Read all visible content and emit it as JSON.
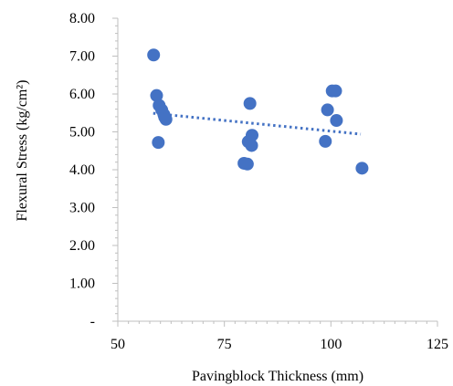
{
  "chart_data": {
    "type": "scatter",
    "title": "",
    "xlabel": "Pavingblock Thickness (mm)",
    "ylabel": "Flexural Stress (kg/cm²)",
    "xlim": [
      50,
      125
    ],
    "ylim": [
      0,
      8
    ],
    "x_ticks": [
      {
        "value": 50,
        "label": "50"
      },
      {
        "value": 75,
        "label": "75"
      },
      {
        "value": 100,
        "label": "100"
      },
      {
        "value": 125,
        "label": "125"
      }
    ],
    "y_ticks": [
      {
        "value": 0,
        "label": "-"
      },
      {
        "value": 1,
        "label": "1.00"
      },
      {
        "value": 2,
        "label": "2.00"
      },
      {
        "value": 3,
        "label": "3.00"
      },
      {
        "value": 4,
        "label": "4.00"
      },
      {
        "value": 5,
        "label": "5.00"
      },
      {
        "value": 6,
        "label": "6.00"
      },
      {
        "value": 7,
        "label": "7.00"
      },
      {
        "value": 8,
        "label": "8.00"
      }
    ],
    "grid": false,
    "legend": "none",
    "marker_color": "#4472C4",
    "trendline": {
      "type": "linear",
      "style": "dotted",
      "color": "#4472C4",
      "x": [
        58.3,
        107.0
      ],
      "y": [
        5.49,
        4.94
      ]
    },
    "points": [
      {
        "x": 58.4,
        "y": 7.03
      },
      {
        "x": 59.1,
        "y": 5.96
      },
      {
        "x": 59.7,
        "y": 5.7
      },
      {
        "x": 60.3,
        "y": 5.58
      },
      {
        "x": 60.8,
        "y": 5.46
      },
      {
        "x": 61.0,
        "y": 5.39
      },
      {
        "x": 61.3,
        "y": 5.33
      },
      {
        "x": 59.5,
        "y": 4.72
      },
      {
        "x": 79.6,
        "y": 4.17
      },
      {
        "x": 80.4,
        "y": 4.15
      },
      {
        "x": 80.6,
        "y": 4.74
      },
      {
        "x": 81.0,
        "y": 5.75
      },
      {
        "x": 81.4,
        "y": 4.64
      },
      {
        "x": 81.5,
        "y": 4.91
      },
      {
        "x": 98.7,
        "y": 4.75
      },
      {
        "x": 99.2,
        "y": 5.58
      },
      {
        "x": 100.3,
        "y": 6.08
      },
      {
        "x": 101.1,
        "y": 6.08
      },
      {
        "x": 101.3,
        "y": 5.3
      },
      {
        "x": 107.3,
        "y": 4.04
      }
    ]
  }
}
